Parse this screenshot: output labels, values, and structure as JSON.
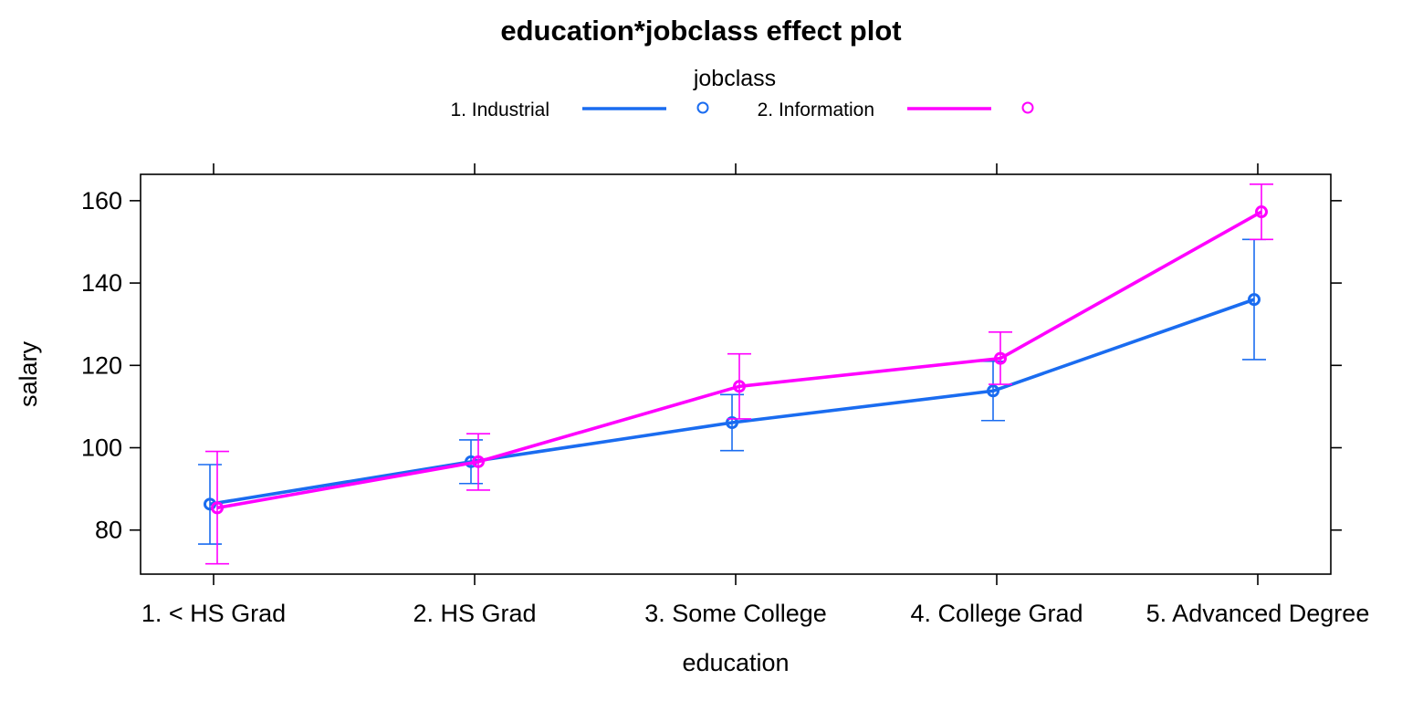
{
  "chart_data": {
    "type": "line",
    "title": "education*jobclass effect plot",
    "xlabel": "education",
    "ylabel": "salary",
    "legend": {
      "title": "jobclass",
      "position": "top"
    },
    "categories": [
      "1. < HS Grad",
      "2. HS Grad",
      "3. Some College",
      "4. College Grad",
      "5. Advanced Degree"
    ],
    "yticks": [
      80,
      100,
      120,
      140,
      160
    ],
    "ylim": [
      69.3,
      166.4
    ],
    "grid": false,
    "error_bars": true,
    "series": [
      {
        "name": "1. Industrial",
        "color": "#1a6cf0",
        "values": [
          86.3,
          96.6,
          106.1,
          113.8,
          136.0
        ],
        "lower": [
          76.6,
          91.3,
          99.3,
          106.6,
          121.4
        ],
        "upper": [
          95.9,
          101.9,
          112.9,
          121.0,
          150.6
        ]
      },
      {
        "name": "2. Information",
        "color": "#ff00ff",
        "values": [
          85.4,
          96.6,
          114.9,
          121.7,
          157.3
        ],
        "lower": [
          71.8,
          89.7,
          107.0,
          115.4,
          150.6
        ],
        "upper": [
          99.1,
          103.4,
          122.8,
          128.1,
          164.0
        ]
      }
    ]
  }
}
